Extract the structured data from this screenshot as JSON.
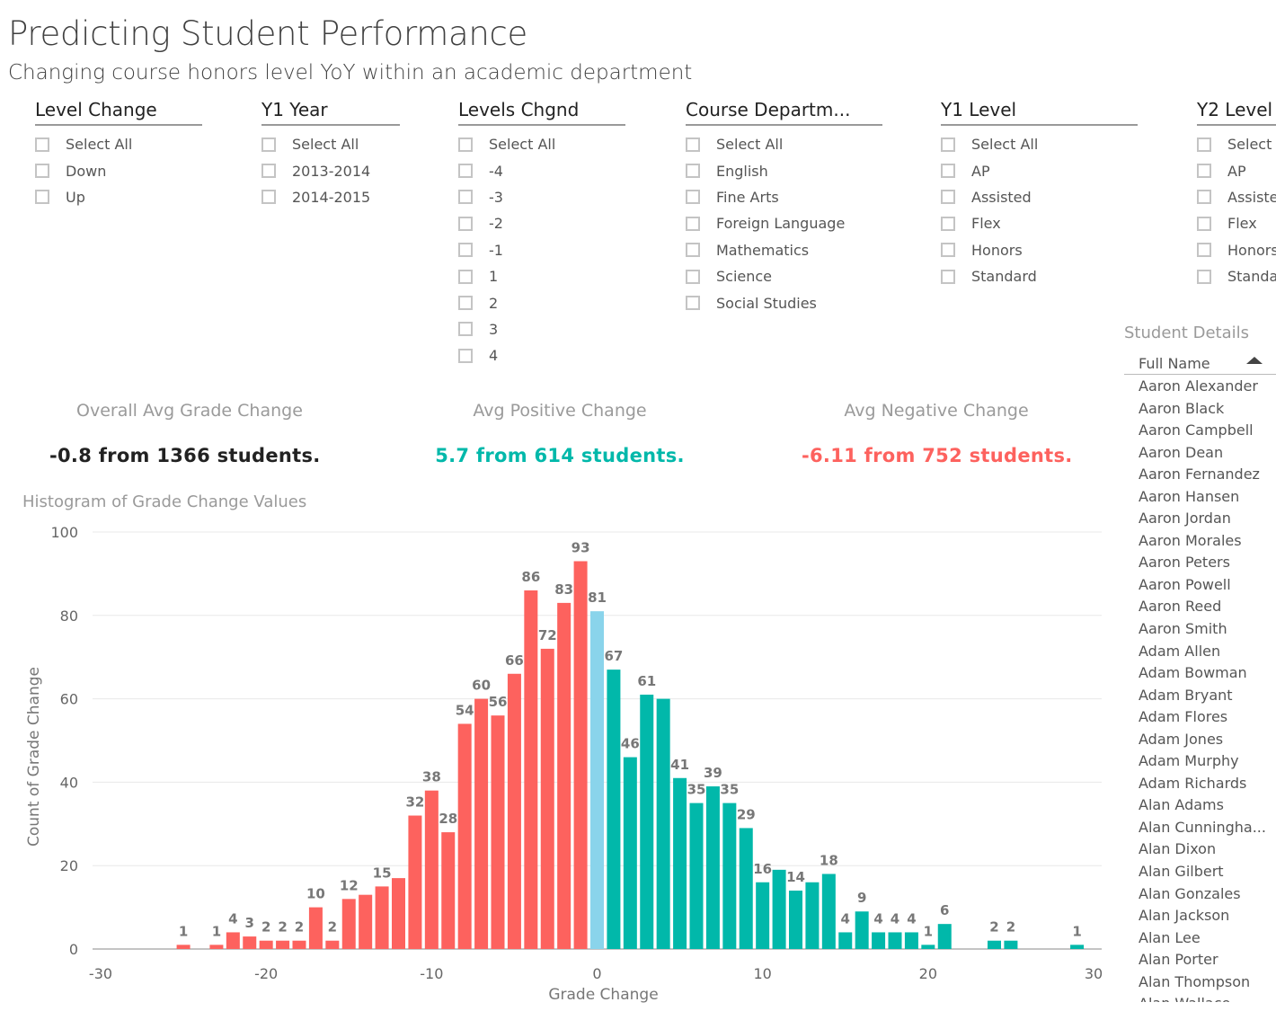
{
  "header": {
    "title": "Predicting Student Performance",
    "subtitle": "Changing course honors level YoY within an academic department"
  },
  "slicers": [
    {
      "title": "Level Change",
      "items": [
        "Select All",
        "Down",
        "Up"
      ]
    },
    {
      "title": "Y1 Year",
      "items": [
        "Select All",
        "2013-2014",
        "2014-2015"
      ]
    },
    {
      "title": "Levels Chgnd",
      "items": [
        "Select All",
        "-4",
        "-3",
        "-2",
        "-1",
        "1",
        "2",
        "3",
        "4"
      ]
    },
    {
      "title": "Course Departm...",
      "items": [
        "Select All",
        "English",
        "Fine Arts",
        "Foreign Language",
        "Mathematics",
        "Science",
        "Social Studies"
      ]
    },
    {
      "title": "Y1 Level",
      "items": [
        "Select All",
        "AP",
        "Assisted",
        "Flex",
        "Honors",
        "Standard"
      ]
    },
    {
      "title": "Y2 Level",
      "items": [
        "Select All",
        "AP",
        "Assisted",
        "Flex",
        "Honors",
        "Standard"
      ]
    }
  ],
  "cards": [
    {
      "label": "Overall Avg Grade Change",
      "value": "-0.8 from 1366 students.",
      "color": "#222222"
    },
    {
      "label": "Avg Positive Change",
      "value": "5.7 from 614 students.",
      "color": "#01B8AA"
    },
    {
      "label": "Avg Negative Change",
      "value": "-6.11 from 752 students.",
      "color": "#FD625E"
    }
  ],
  "chart_data": {
    "type": "bar",
    "title": "Histogram of Grade Change Values",
    "xlabel": "Grade Change",
    "ylabel": "Count of Grade Change",
    "xlim": [
      -30,
      30
    ],
    "ylim": [
      0,
      100
    ],
    "x_ticks": [
      -30,
      -20,
      -10,
      0,
      10,
      20,
      30
    ],
    "y_ticks": [
      0,
      20,
      40,
      60,
      80,
      100
    ],
    "grid": true,
    "colors": {
      "negative": "#FD625E",
      "zero": "#8AD4EB",
      "positive": "#01B8AA"
    },
    "x": [
      -25,
      -23,
      -22,
      -21,
      -20,
      -19,
      -18,
      -17,
      -16,
      -15,
      -14,
      -13,
      -12,
      -11,
      -10,
      -9,
      -8,
      -7,
      -6,
      -5,
      -4,
      -3,
      -2,
      -1,
      0,
      1,
      2,
      3,
      4,
      5,
      6,
      7,
      8,
      9,
      10,
      11,
      12,
      13,
      14,
      15,
      16,
      17,
      18,
      19,
      20,
      21,
      24,
      25,
      29
    ],
    "values": [
      1,
      1,
      4,
      3,
      2,
      2,
      2,
      10,
      2,
      12,
      13,
      15,
      17,
      32,
      38,
      28,
      54,
      60,
      56,
      66,
      86,
      72,
      83,
      93,
      81,
      67,
      46,
      61,
      60,
      41,
      35,
      39,
      35,
      29,
      16,
      19,
      14,
      16,
      18,
      4,
      9,
      4,
      4,
      4,
      1,
      6,
      2,
      2,
      1
    ],
    "labeled": [
      -25,
      -23,
      -22,
      -21,
      -20,
      -19,
      -18,
      -17,
      -16,
      -15,
      -13,
      -11,
      -10,
      -9,
      -8,
      -7,
      -6,
      -5,
      -4,
      -3,
      -2,
      -1,
      0,
      1,
      2,
      3,
      5,
      6,
      7,
      8,
      9,
      10,
      12,
      14,
      15,
      16,
      17,
      18,
      19,
      20,
      21,
      24,
      25,
      29
    ]
  },
  "student_details": {
    "title": "Student Details",
    "column": "Full Name",
    "names": [
      "Aaron Alexander",
      "Aaron Black",
      "Aaron Campbell",
      "Aaron Dean",
      "Aaron Fernandez",
      "Aaron Hansen",
      "Aaron Jordan",
      "Aaron Morales",
      "Aaron Peters",
      "Aaron Powell",
      "Aaron Reed",
      "Aaron Smith",
      "Adam Allen",
      "Adam Bowman",
      "Adam Bryant",
      "Adam Flores",
      "Adam Jones",
      "Adam Murphy",
      "Adam Richards",
      "Alan Adams",
      "Alan Cunningha...",
      "Alan Dixon",
      "Alan Gilbert",
      "Alan Gonzales",
      "Alan Jackson",
      "Alan Lee",
      "Alan Porter",
      "Alan Thompson",
      "Alan Wallace"
    ]
  }
}
